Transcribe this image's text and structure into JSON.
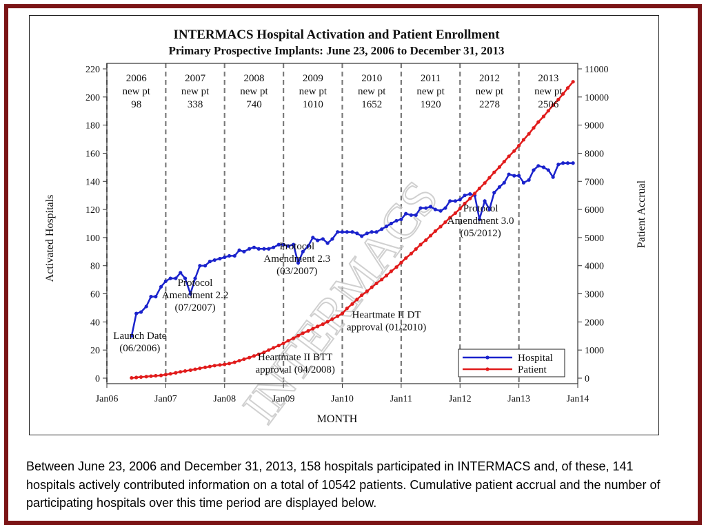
{
  "slide": {
    "caption": "Between June 23, 2006 and December 31, 2013, 158 hospitals participated in INTERMACS and, of these, 141 hospitals actively contributed information on a total of 10542 patients. Cumulative patient accrual and the number of participating hospitals over this time period are displayed below.",
    "border_color": "#7b1416"
  },
  "chart_data": {
    "type": "line",
    "title": "INTERMACS Hospital Activation and Patient Enrollment",
    "subtitle": "Primary Prospective Implants: June 23, 2006 to December 31, 2013",
    "xlabel": "MONTH",
    "ylabel_left": "Activated Hospitals",
    "ylabel_right": "Patient Accrual",
    "xlim": [
      2006.0,
      2014.0
    ],
    "ylim_left": [
      0,
      220
    ],
    "ylim_right": [
      0,
      11000
    ],
    "x_ticks": [
      "Jan06",
      "Jan07",
      "Jan08",
      "Jan09",
      "Jan10",
      "Jan11",
      "Jan12",
      "Jan13",
      "Jan14"
    ],
    "y_ticks_left": [
      0,
      20,
      40,
      60,
      80,
      100,
      120,
      140,
      160,
      180,
      200,
      220
    ],
    "y_ticks_right": [
      0,
      1000,
      2000,
      3000,
      4000,
      5000,
      6000,
      7000,
      8000,
      9000,
      10000,
      11000
    ],
    "watermark": "INTERMACS",
    "year_dividers": [
      2006.0,
      2007.0,
      2008.0,
      2009.0,
      2010.0,
      2011.0,
      2012.0,
      2013.0
    ],
    "year_boxes": [
      {
        "year": "2006",
        "label": "new pt",
        "count": "98"
      },
      {
        "year": "2007",
        "label": "new pt",
        "count": "338"
      },
      {
        "year": "2008",
        "label": "new pt",
        "count": "740"
      },
      {
        "year": "2009",
        "label": "new pt",
        "count": "1010"
      },
      {
        "year": "2010",
        "label": "new pt",
        "count": "1652"
      },
      {
        "year": "2011",
        "label": "new pt",
        "count": "1920"
      },
      {
        "year": "2012",
        "label": "new pt",
        "count": "2278"
      },
      {
        "year": "2013",
        "label": "new pt",
        "count": "2506"
      }
    ],
    "annotations": [
      {
        "lines": [
          "Launch Date",
          "(06/2006)"
        ],
        "x": 2006.56,
        "y_left": 19
      },
      {
        "lines": [
          "Protocol",
          "Amendment 2.2",
          "(07/2007)"
        ],
        "x": 2007.5,
        "y_left": 48
      },
      {
        "lines": [
          "Protocol",
          "Amendment 2.3",
          "(03/2007)"
        ],
        "x": 2009.23,
        "y_left": 74
      },
      {
        "lines": [
          "Heartmate II BTT",
          "approval (04/2008)"
        ],
        "x": 2009.2,
        "y_left": 4
      },
      {
        "lines": [
          "Heartmate II DT",
          "approval (01/2010)"
        ],
        "x": 2010.75,
        "y_left": 34
      },
      {
        "lines": [
          "Protocol",
          "Amendment 3.0",
          "(05/2012)"
        ],
        "x": 2012.35,
        "y_left": 101
      }
    ],
    "legend_position": "bottom-right",
    "series": [
      {
        "name": "Hospital",
        "axis": "left",
        "color": "#1a22cc",
        "x": [
          2006.42,
          2006.5,
          2006.58,
          2006.67,
          2006.75,
          2006.83,
          2006.92,
          2007.0,
          2007.08,
          2007.17,
          2007.25,
          2007.33,
          2007.42,
          2007.5,
          2007.58,
          2007.67,
          2007.75,
          2007.83,
          2007.92,
          2008.0,
          2008.08,
          2008.17,
          2008.25,
          2008.33,
          2008.42,
          2008.5,
          2008.58,
          2008.67,
          2008.75,
          2008.83,
          2008.92,
          2009.0,
          2009.08,
          2009.17,
          2009.25,
          2009.33,
          2009.42,
          2009.5,
          2009.58,
          2009.67,
          2009.75,
          2009.83,
          2009.92,
          2010.0,
          2010.08,
          2010.17,
          2010.25,
          2010.33,
          2010.42,
          2010.5,
          2010.58,
          2010.67,
          2010.75,
          2010.83,
          2010.92,
          2011.0,
          2011.08,
          2011.17,
          2011.25,
          2011.33,
          2011.42,
          2011.5,
          2011.58,
          2011.67,
          2011.75,
          2011.83,
          2011.92,
          2012.0,
          2012.08,
          2012.17,
          2012.25,
          2012.33,
          2012.42,
          2012.5,
          2012.58,
          2012.67,
          2012.75,
          2012.83,
          2012.92,
          2013.0,
          2013.08,
          2013.17,
          2013.25,
          2013.33,
          2013.42,
          2013.5,
          2013.58,
          2013.67,
          2013.75,
          2013.83,
          2013.92
        ],
        "values": [
          30,
          46,
          47,
          51,
          58,
          58,
          65,
          69,
          71,
          71,
          75,
          71,
          60,
          71,
          80,
          80,
          83,
          84,
          85,
          86,
          87,
          87,
          91,
          90,
          92,
          93,
          92,
          92,
          92,
          93,
          95,
          95,
          94,
          95,
          82,
          90,
          94,
          100,
          98,
          99,
          96,
          99,
          104,
          104,
          104,
          104,
          103,
          101,
          103,
          104,
          104,
          106,
          108,
          110,
          112,
          113,
          117,
          116,
          116,
          121,
          121,
          122,
          120,
          119,
          121,
          126,
          126,
          127,
          130,
          131,
          130,
          113,
          126,
          120,
          132,
          136,
          139,
          145,
          144,
          144,
          139,
          141,
          148,
          151,
          150,
          148,
          143,
          152,
          153,
          153,
          153
        ]
      },
      {
        "name": "Patient",
        "axis": "right",
        "color": "#e11b1b",
        "x": [
          2006.42,
          2006.5,
          2006.58,
          2006.67,
          2006.75,
          2006.83,
          2006.92,
          2007.0,
          2007.08,
          2007.17,
          2007.25,
          2007.33,
          2007.42,
          2007.5,
          2007.58,
          2007.67,
          2007.75,
          2007.83,
          2007.92,
          2008.0,
          2008.08,
          2008.17,
          2008.25,
          2008.33,
          2008.42,
          2008.5,
          2008.58,
          2008.67,
          2008.75,
          2008.83,
          2008.92,
          2009.0,
          2009.08,
          2009.17,
          2009.25,
          2009.33,
          2009.42,
          2009.5,
          2009.58,
          2009.67,
          2009.75,
          2009.83,
          2009.92,
          2010.0,
          2010.08,
          2010.17,
          2010.25,
          2010.33,
          2010.42,
          2010.5,
          2010.58,
          2010.67,
          2010.75,
          2010.83,
          2010.92,
          2011.0,
          2011.08,
          2011.17,
          2011.25,
          2011.33,
          2011.42,
          2011.5,
          2011.58,
          2011.67,
          2011.75,
          2011.83,
          2011.92,
          2012.0,
          2012.08,
          2012.17,
          2012.25,
          2012.33,
          2012.42,
          2012.5,
          2012.58,
          2012.67,
          2012.75,
          2012.83,
          2012.92,
          2013.0,
          2013.08,
          2013.17,
          2013.25,
          2013.33,
          2013.42,
          2013.5,
          2013.58,
          2013.67,
          2013.75,
          2013.83,
          2013.92
        ],
        "values": [
          10,
          25,
          40,
          55,
          70,
          85,
          98,
          125,
          155,
          190,
          225,
          255,
          285,
          315,
          350,
          385,
          415,
          445,
          470,
          490,
          520,
          565,
          620,
          675,
          730,
          790,
          850,
          920,
          1000,
          1080,
          1160,
          1240,
          1330,
          1420,
          1510,
          1600,
          1680,
          1760,
          1840,
          1920,
          2010,
          2100,
          2200,
          2300,
          2480,
          2640,
          2800,
          2950,
          3090,
          3230,
          3370,
          3510,
          3650,
          3800,
          3950,
          4110,
          4270,
          4430,
          4590,
          4750,
          4910,
          5070,
          5230,
          5390,
          5550,
          5710,
          5870,
          6030,
          6210,
          6390,
          6570,
          6750,
          6940,
          7130,
          7320,
          7510,
          7700,
          7890,
          8080,
          8270,
          8480,
          8690,
          8900,
          9110,
          9310,
          9510,
          9710,
          9910,
          10110,
          10320,
          10542
        ]
      }
    ]
  }
}
